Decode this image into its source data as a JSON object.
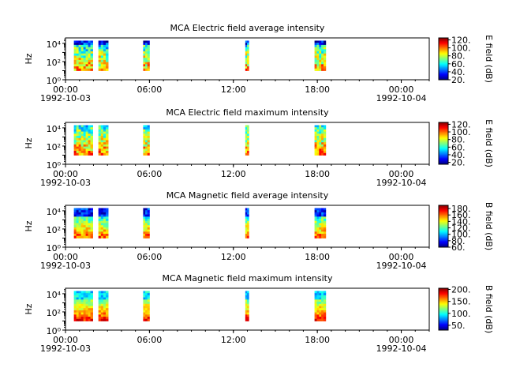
{
  "chart_data": {
    "type": "heatmap",
    "time_range": {
      "start": "1992-10-03T00:00",
      "end": "1992-10-04T02:00"
    },
    "x_ticks": [
      {
        "t": 0,
        "label": "00:00",
        "date": "1992-10-03"
      },
      {
        "t": 6,
        "label": "06:00"
      },
      {
        "t": 12,
        "label": "12:00"
      },
      {
        "t": 18,
        "label": "18:00"
      },
      {
        "t": 24,
        "label": "00:00",
        "date": "1992-10-04"
      }
    ],
    "x_minor_ticks_hours": 1,
    "y_scale": "log",
    "y_ticks": [
      {
        "exp": 0,
        "label": "10⁰"
      },
      {
        "exp": 2,
        "label": "10²"
      },
      {
        "exp": 4,
        "label": "10⁴"
      }
    ],
    "y_range_exp": [
      0,
      4.6
    ],
    "data_range_exp": [
      1.0,
      4.3
    ],
    "segments_hours": [
      [
        0.6,
        1.95
      ],
      [
        2.35,
        3.05
      ],
      [
        5.55,
        6.0
      ],
      [
        12.85,
        13.1
      ],
      [
        17.8,
        18.6
      ]
    ],
    "panels": [
      {
        "title": "MCA  Electric field average intensity",
        "ylabel": "Hz",
        "cbar_label": "E field (dB)",
        "cbar_range": [
          20,
          125
        ],
        "cbar_ticks": [
          20,
          40,
          60,
          80,
          100,
          120
        ],
        "cbar_tick_labels": [
          "20.",
          "40.",
          "60.",
          "80.",
          "100.",
          "120."
        ]
      },
      {
        "title": "MCA  Electric field maximum intensity",
        "ylabel": "Hz",
        "cbar_label": "E field (dB)",
        "cbar_range": [
          15,
          125
        ],
        "cbar_ticks": [
          20,
          40,
          60,
          80,
          100,
          120
        ],
        "cbar_tick_labels": [
          "20.",
          "40.",
          "60.",
          "80.",
          "100.",
          "120."
        ]
      },
      {
        "title": "MCA  Magnetic field average intensity",
        "ylabel": "Hz",
        "cbar_label": "B field (dB)",
        "cbar_range": [
          60,
          190
        ],
        "cbar_ticks": [
          60,
          80,
          100,
          120,
          140,
          160,
          180
        ],
        "cbar_tick_labels": [
          "60.",
          "80.",
          "100.",
          "120.",
          "140.",
          "160.",
          "180."
        ]
      },
      {
        "title": "MCA  Magnetic field maximum intensity",
        "ylabel": "Hz",
        "cbar_label": "B field (dB)",
        "cbar_range": [
          30,
          205
        ],
        "cbar_ticks": [
          50,
          100,
          150,
          200
        ],
        "cbar_tick_labels": [
          "50.",
          "100.",
          "150.",
          "200."
        ]
      }
    ]
  }
}
